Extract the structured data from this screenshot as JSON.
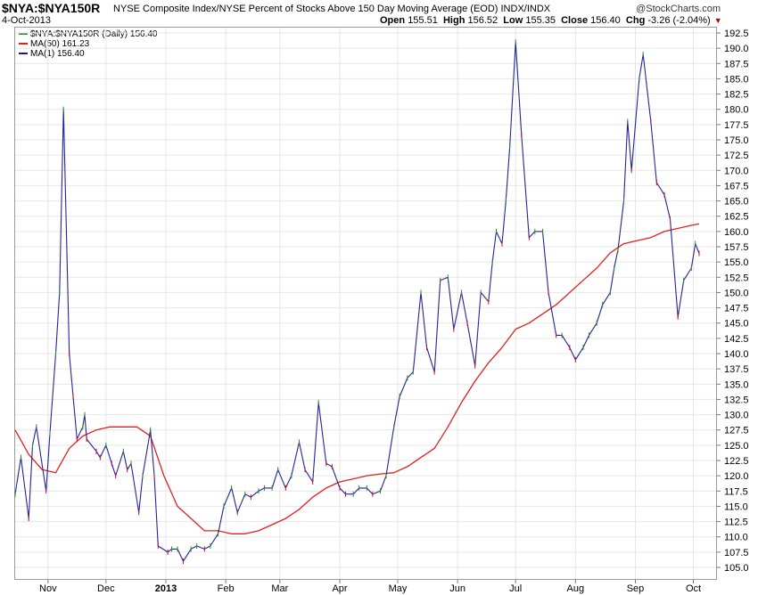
{
  "header": {
    "ticker": "$NYA:$NYA150R",
    "description": "NYSE Composite Index/NYSE Percent of Stocks Above 150 Day Moving Average (EOD)  INDX/INDX",
    "watermark": "@StockCharts.com",
    "date": "4-Oct-2013",
    "ohlc": {
      "open_label": "Open",
      "open": "155.51",
      "high_label": "High",
      "high": "156.52",
      "low_label": "Low",
      "low": "155.35",
      "close_label": "Close",
      "close": "156.40",
      "chg_label": "Chg",
      "chg": "-3.26 (-2.04%)"
    }
  },
  "legend": [
    {
      "label": "$NYA:$NYA150R (Daily) 156.40",
      "color": "#2b8a2b"
    },
    {
      "label": "MA(50) 161.23",
      "color": "#e02020"
    },
    {
      "label": "MA(1) 156.40",
      "color": "#1a1a8c"
    }
  ],
  "colors": {
    "price_line": "#24249a",
    "ma50_line": "#e02020",
    "up_tick": "#2b8a2b",
    "down_tick": "#c01030",
    "grid": "#e6e6e6",
    "text": "#000000"
  },
  "chart_data": {
    "type": "line",
    "title": "$NYA:$NYA150R",
    "xlabel": "",
    "ylabel": "",
    "ylim": [
      103.75,
      192.95
    ],
    "yticks": [
      105.0,
      107.5,
      110.0,
      112.5,
      115.0,
      117.5,
      120.0,
      122.5,
      125.0,
      127.5,
      130.0,
      132.5,
      135.0,
      137.5,
      140.0,
      142.5,
      145.0,
      147.5,
      150.0,
      152.5,
      155.0,
      157.5,
      160.0,
      162.5,
      165.0,
      167.5,
      170.0,
      172.5,
      175.0,
      177.5,
      180.0,
      182.5,
      185.0,
      187.5,
      190.0,
      192.5
    ],
    "ytick_labels": [
      "105.0",
      "107.5",
      "110.0",
      "112.5",
      "115.0",
      "117.5",
      "120.0",
      "122.5",
      "125.0",
      "127.5",
      "130.0",
      "132.5",
      "135.0",
      "137.5",
      "140.0",
      "142.5",
      "145.0",
      "147.5",
      "150.0",
      "152.5",
      "155.0",
      "157.5",
      "160.0",
      "162.5",
      "165.0",
      "167.5",
      "170.0",
      "172.5",
      "175.0",
      "177.5",
      "180.0",
      "182.5",
      "185.0",
      "187.5",
      "190.0",
      "192.5"
    ],
    "x_range": [
      "2012-10-15",
      "2013-10-04"
    ],
    "month_labels": [
      {
        "label": "Nov",
        "date": "2012-11-01",
        "bold": false
      },
      {
        "label": "Dec",
        "date": "2012-12-01",
        "bold": false
      },
      {
        "label": "2013",
        "date": "2013-01-01",
        "bold": true
      },
      {
        "label": "Feb",
        "date": "2013-02-01",
        "bold": false
      },
      {
        "label": "Mar",
        "date": "2013-03-01",
        "bold": false
      },
      {
        "label": "Apr",
        "date": "2013-04-01",
        "bold": false
      },
      {
        "label": "May",
        "date": "2013-05-01",
        "bold": false
      },
      {
        "label": "Jun",
        "date": "2013-06-01",
        "bold": false
      },
      {
        "label": "Jul",
        "date": "2013-07-01",
        "bold": false
      },
      {
        "label": "Aug",
        "date": "2013-08-01",
        "bold": false
      },
      {
        "label": "Sep",
        "date": "2013-09-01",
        "bold": false
      },
      {
        "label": "Oct",
        "date": "2013-10-01",
        "bold": false
      }
    ],
    "series": [
      {
        "name": "MA(1) 156.40",
        "x": [
          "2012-10-15",
          "2012-10-18",
          "2012-10-22",
          "2012-10-24",
          "2012-10-26",
          "2012-10-31",
          "2012-11-02",
          "2012-11-05",
          "2012-11-07",
          "2012-11-09",
          "2012-11-12",
          "2012-11-14",
          "2012-11-16",
          "2012-11-19",
          "2012-11-20",
          "2012-11-21",
          "2012-11-26",
          "2012-11-28",
          "2012-12-01",
          "2012-12-04",
          "2012-12-06",
          "2012-12-10",
          "2012-12-12",
          "2012-12-14",
          "2012-12-18",
          "2012-12-20",
          "2012-12-24",
          "2012-12-26",
          "2012-12-28",
          "2013-01-02",
          "2013-01-04",
          "2013-01-07",
          "2013-01-10",
          "2013-01-14",
          "2013-01-17",
          "2013-01-21",
          "2013-01-24",
          "2013-01-28",
          "2013-01-31",
          "2013-02-04",
          "2013-02-07",
          "2013-02-11",
          "2013-02-14",
          "2013-02-18",
          "2013-02-21",
          "2013-02-25",
          "2013-02-28",
          "2013-03-04",
          "2013-03-07",
          "2013-03-11",
          "2013-03-14",
          "2013-03-18",
          "2013-03-21",
          "2013-03-25",
          "2013-03-28",
          "2013-04-01",
          "2013-04-04",
          "2013-04-08",
          "2013-04-11",
          "2013-04-15",
          "2013-04-18",
          "2013-04-22",
          "2013-04-25",
          "2013-04-29",
          "2013-05-02",
          "2013-05-06",
          "2013-05-09",
          "2013-05-13",
          "2013-05-16",
          "2013-05-20",
          "2013-05-23",
          "2013-05-27",
          "2013-05-30",
          "2013-06-03",
          "2013-06-06",
          "2013-06-10",
          "2013-06-13",
          "2013-06-17",
          "2013-06-19",
          "2013-06-21",
          "2013-06-24",
          "2013-06-26",
          "2013-06-28",
          "2013-07-01",
          "2013-07-04",
          "2013-07-08",
          "2013-07-11",
          "2013-07-15",
          "2013-07-18",
          "2013-07-22",
          "2013-07-25",
          "2013-07-29",
          "2013-08-01",
          "2013-08-05",
          "2013-08-08",
          "2013-08-12",
          "2013-08-15",
          "2013-08-19",
          "2013-08-21",
          "2013-08-23",
          "2013-08-26",
          "2013-08-28",
          "2013-08-30",
          "2013-09-03",
          "2013-09-05",
          "2013-09-09",
          "2013-09-12",
          "2013-09-16",
          "2013-09-19",
          "2013-09-23",
          "2013-09-26",
          "2013-09-30",
          "2013-10-02",
          "2013-10-04"
        ],
        "y": [
          117.0,
          123.0,
          113.0,
          125.0,
          128.0,
          117.5,
          127.0,
          140.0,
          150.0,
          180.0,
          140.0,
          133.0,
          126.0,
          128.0,
          130.0,
          126.0,
          124.0,
          123.0,
          125.0,
          122.0,
          120.0,
          124.0,
          121.0,
          122.0,
          114.0,
          120.0,
          127.5,
          120.0,
          108.5,
          107.5,
          108.0,
          108.0,
          106.0,
          108.0,
          108.5,
          108.0,
          108.5,
          110.5,
          115.0,
          118.0,
          114.0,
          117.0,
          116.5,
          117.5,
          118.0,
          118.0,
          121.0,
          118.0,
          120.0,
          125.5,
          121.0,
          119.0,
          132.0,
          122.0,
          121.5,
          118.0,
          117.0,
          117.0,
          118.0,
          118.0,
          117.0,
          117.5,
          120.0,
          128.0,
          133.0,
          136.0,
          137.0,
          150.0,
          141.0,
          137.0,
          152.0,
          152.5,
          144.0,
          150.0,
          145.0,
          138.0,
          150.0,
          148.5,
          155.0,
          160.0,
          158.0,
          165.0,
          174.0,
          191.0,
          176.0,
          159.0,
          160.0,
          160.0,
          150.0,
          143.0,
          143.0,
          141.0,
          139.0,
          141.0,
          143.0,
          145.0,
          148.0,
          150.0,
          154.0,
          157.0,
          165.0,
          178.0,
          170.0,
          185.0,
          189.0,
          178.0,
          168.0,
          166.0,
          162.0,
          146.0,
          152.0,
          154.0,
          158.0,
          156.4
        ],
        "color": "#24249a"
      },
      {
        "name": "MA(50) 161.23",
        "x": [
          "2012-10-15",
          "2012-10-22",
          "2012-10-29",
          "2012-11-05",
          "2012-11-12",
          "2012-11-19",
          "2012-11-26",
          "2012-12-03",
          "2012-12-10",
          "2012-12-17",
          "2012-12-24",
          "2012-12-31",
          "2013-01-07",
          "2013-01-14",
          "2013-01-21",
          "2013-01-28",
          "2013-02-04",
          "2013-02-11",
          "2013-02-18",
          "2013-02-25",
          "2013-03-04",
          "2013-03-11",
          "2013-03-18",
          "2013-03-25",
          "2013-04-01",
          "2013-04-08",
          "2013-04-15",
          "2013-04-22",
          "2013-04-29",
          "2013-05-06",
          "2013-05-13",
          "2013-05-20",
          "2013-05-27",
          "2013-06-03",
          "2013-06-10",
          "2013-06-17",
          "2013-06-24",
          "2013-07-01",
          "2013-07-08",
          "2013-07-15",
          "2013-07-22",
          "2013-07-29",
          "2013-08-05",
          "2013-08-12",
          "2013-08-19",
          "2013-08-26",
          "2013-09-02",
          "2013-09-09",
          "2013-09-16",
          "2013-09-23",
          "2013-09-30",
          "2013-10-04"
        ],
        "y": [
          127.5,
          123.5,
          121.0,
          120.5,
          124.5,
          126.5,
          127.5,
          128.0,
          128.0,
          128.0,
          126.5,
          120.0,
          115.0,
          113.0,
          111.0,
          111.0,
          110.5,
          110.5,
          111.0,
          112.0,
          113.0,
          114.5,
          116.5,
          118.0,
          119.0,
          119.5,
          120.0,
          120.3,
          120.5,
          121.5,
          123.0,
          124.5,
          128.0,
          132.0,
          135.5,
          138.5,
          141.0,
          144.0,
          145.0,
          146.5,
          148.0,
          150.0,
          152.0,
          154.0,
          156.5,
          158.0,
          158.5,
          159.0,
          160.0,
          160.5,
          161.0,
          161.23
        ],
        "color": "#e02020"
      }
    ],
    "grid": true,
    "legend": "top-left",
    "axis_position": "right"
  }
}
